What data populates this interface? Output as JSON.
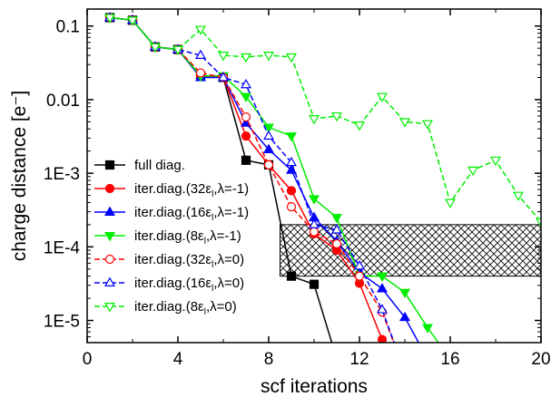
{
  "chart_data": {
    "type": "line",
    "xlabel": "scf iterations",
    "ylabel": "charge distance [e⁻]",
    "xlim": [
      0,
      20
    ],
    "ylim": [
      5e-06,
      0.17
    ],
    "yscale": "log",
    "x_ticks": [
      0,
      4,
      8,
      12,
      16,
      20
    ],
    "x_tick_labels": [
      "0",
      "4",
      "8",
      "12",
      "16",
      "20"
    ],
    "y_ticks": [
      1e-05,
      0.0001,
      0.001,
      0.01,
      0.1
    ],
    "y_tick_labels": [
      "1E-5",
      "1E-4",
      "1E-3",
      "0.01",
      "0.1"
    ],
    "legend_position": "lower-left",
    "shaded_region": {
      "x": [
        8.5,
        20
      ],
      "y": [
        4e-05,
        0.0002
      ],
      "pattern": "crosshatch"
    },
    "series": [
      {
        "name": "full diag.",
        "label_main": "full diag.",
        "label_sub": "",
        "label_rest": "",
        "color": "#000000",
        "dash": "solid",
        "marker": "square",
        "filled": true,
        "points": [
          [
            1,
            0.13
          ],
          [
            2,
            0.12
          ],
          [
            3,
            0.052
          ],
          [
            4,
            0.048
          ],
          [
            5,
            0.021
          ],
          [
            6,
            0.02
          ],
          [
            7,
            0.0015
          ],
          [
            8,
            0.0013
          ],
          [
            9,
            4e-05
          ],
          [
            10,
            3.1e-05
          ],
          [
            11,
            3e-06
          ]
        ]
      },
      {
        "name": "iter.diag.(32εl,λ=-1)",
        "label_main": "iter.diag.(32ε",
        "label_sub": "l",
        "label_rest": ",λ=-1)",
        "color": "#ff0000",
        "dash": "solid",
        "marker": "circle",
        "filled": true,
        "points": [
          [
            1,
            0.13
          ],
          [
            2,
            0.12
          ],
          [
            3,
            0.052
          ],
          [
            4,
            0.048
          ],
          [
            5,
            0.021
          ],
          [
            6,
            0.02
          ],
          [
            7,
            0.0032
          ],
          [
            8,
            0.0013
          ],
          [
            9,
            0.00058
          ],
          [
            10,
            0.00015
          ],
          [
            11,
            9e-05
          ],
          [
            12,
            3.2e-05
          ],
          [
            13,
            5.5e-06
          ],
          [
            14,
            2e-06
          ]
        ]
      },
      {
        "name": "iter.diag.(16εl,λ=-1)",
        "label_main": "iter.diag.(16ε",
        "label_sub": "l",
        "label_rest": ",λ=-1)",
        "color": "#0000ff",
        "dash": "solid",
        "marker": "triangle-up",
        "filled": true,
        "points": [
          [
            1,
            0.13
          ],
          [
            2,
            0.12
          ],
          [
            3,
            0.052
          ],
          [
            4,
            0.048
          ],
          [
            5,
            0.02
          ],
          [
            6,
            0.02
          ],
          [
            7,
            0.0048
          ],
          [
            8,
            0.0021
          ],
          [
            9,
            0.0011
          ],
          [
            10,
            0.00025
          ],
          [
            11,
            0.00012
          ],
          [
            12,
            4.5e-05
          ],
          [
            13,
            2.7e-05
          ],
          [
            14,
            1.1e-05
          ],
          [
            15,
            3e-06
          ]
        ]
      },
      {
        "name": "iter.diag.(8εl,λ=-1)",
        "label_main": "iter.diag.(8ε",
        "label_sub": "l",
        "label_rest": ",λ=-1)",
        "color": "#00ee00",
        "dash": "solid",
        "marker": "triangle-down",
        "filled": true,
        "points": [
          [
            1,
            0.13
          ],
          [
            2,
            0.12
          ],
          [
            3,
            0.052
          ],
          [
            4,
            0.048
          ],
          [
            5,
            0.021
          ],
          [
            6,
            0.021
          ],
          [
            7,
            0.011
          ],
          [
            8,
            0.0042
          ],
          [
            9,
            0.0032
          ],
          [
            10,
            0.00045
          ],
          [
            11,
            0.00025
          ],
          [
            12,
            4e-05
          ],
          [
            13,
            4e-05
          ],
          [
            14,
            2.4e-05
          ],
          [
            15,
            8e-06
          ],
          [
            16,
            3e-06
          ]
        ]
      },
      {
        "name": "iter.diag.(32εl,λ=0)",
        "label_main": "iter.diag.(32ε",
        "label_sub": "l",
        "label_rest": ",λ=0)",
        "color": "#ff0000",
        "dash": "dashed",
        "marker": "circle",
        "filled": false,
        "points": [
          [
            1,
            0.13
          ],
          [
            2,
            0.12
          ],
          [
            3,
            0.052
          ],
          [
            4,
            0.048
          ],
          [
            5,
            0.023
          ],
          [
            6,
            0.02
          ],
          [
            7,
            0.0058
          ],
          [
            8,
            0.0013
          ],
          [
            9,
            0.00035
          ],
          [
            10,
            0.00016
          ],
          [
            11,
            0.00011
          ],
          [
            12,
            4e-05
          ],
          [
            13,
            1.3e-05
          ],
          [
            14,
            2e-06
          ]
        ]
      },
      {
        "name": "iter.diag.(16εl,λ=0)",
        "label_main": "iter.diag.(16ε",
        "label_sub": "l",
        "label_rest": ",λ=0)",
        "color": "#0000ff",
        "dash": "dashed",
        "marker": "triangle-up",
        "filled": false,
        "points": [
          [
            1,
            0.13
          ],
          [
            2,
            0.12
          ],
          [
            3,
            0.052
          ],
          [
            4,
            0.048
          ],
          [
            5,
            0.04
          ],
          [
            6,
            0.02
          ],
          [
            7,
            0.016
          ],
          [
            8,
            0.0032
          ],
          [
            9,
            0.0014
          ],
          [
            10,
            0.0002
          ],
          [
            11,
            0.00017
          ],
          [
            12,
            5.5e-05
          ],
          [
            13,
            1.4e-05
          ],
          [
            14,
            2e-06
          ]
        ]
      },
      {
        "name": "iter.diag.(8εl,λ=0)",
        "label_main": "iter.diag.(8ε",
        "label_sub": "l",
        "label_rest": ",λ=0)",
        "color": "#00ee00",
        "dash": "dashed",
        "marker": "triangle-down",
        "filled": false,
        "points": [
          [
            1,
            0.13
          ],
          [
            2,
            0.12
          ],
          [
            3,
            0.052
          ],
          [
            4,
            0.048
          ],
          [
            5,
            0.09
          ],
          [
            6,
            0.04
          ],
          [
            7,
            0.038
          ],
          [
            8,
            0.04
          ],
          [
            9,
            0.038
          ],
          [
            10,
            0.0055
          ],
          [
            11,
            0.006
          ],
          [
            12,
            0.0045
          ],
          [
            13,
            0.011
          ],
          [
            14,
            0.005
          ],
          [
            15,
            0.0047
          ],
          [
            16,
            0.0004
          ],
          [
            17,
            0.0011
          ],
          [
            18,
            0.0015
          ],
          [
            19,
            0.0005
          ],
          [
            20,
            0.00022
          ]
        ]
      }
    ]
  }
}
